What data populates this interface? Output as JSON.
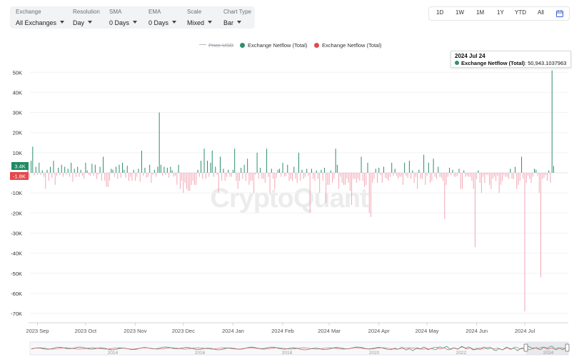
{
  "toolbar": {
    "exchange": {
      "label": "Exchange",
      "value": "All Exchanges"
    },
    "resolution": {
      "label": "Resolution",
      "value": "Day"
    },
    "sma": {
      "label": "SMA",
      "value": "0 Days"
    },
    "ema": {
      "label": "EMA",
      "value": "0 Days"
    },
    "scale": {
      "label": "Scale",
      "value": "Mixed"
    },
    "chart_type": {
      "label": "Chart Type",
      "value": "Bar"
    }
  },
  "ranges": [
    "1D",
    "1W",
    "1M",
    "1Y",
    "YTD",
    "All"
  ],
  "legend": {
    "price": "Price USD",
    "positive": "Exchange Netflow (Total)",
    "negative": "Exchange Netflow (Total)"
  },
  "tooltip": {
    "date": "2024 Jul 24",
    "series": "Exchange Netflow (Total)",
    "value": "50,943.1037963"
  },
  "watermark": "CryptoQuant",
  "colors": {
    "positive": "#2e8f6e",
    "negative": "#f2a7b5",
    "positive_label": "#1f8a63",
    "negative_label": "#e5484d",
    "price_line": "#bbbbbb"
  },
  "markers": {
    "last_positive": "3.4K",
    "last_negative": "-1.8K"
  },
  "navigator": {
    "years": [
      "2014",
      "2016",
      "2018",
      "2020",
      "2022",
      "2024"
    ]
  },
  "chart_data": {
    "type": "bar",
    "title": "",
    "series_name": "Exchange Netflow (Total)",
    "start_date": "2023-08-26",
    "ylim": [
      -72000,
      55000
    ],
    "yticks": [
      "50K",
      "40K",
      "30K",
      "20K",
      "10K",
      "0",
      "-10K",
      "-20K",
      "-30K",
      "-40K",
      "-50K",
      "-60K",
      "-70K"
    ],
    "ytick_values": [
      50000,
      40000,
      30000,
      20000,
      10000,
      0,
      -10000,
      -20000,
      -30000,
      -40000,
      -50000,
      -60000,
      -70000
    ],
    "xticks": [
      {
        "label": "2023 Sep",
        "date": "2023-09-01"
      },
      {
        "label": "2023 Oct",
        "date": "2023-10-01"
      },
      {
        "label": "2023 Nov",
        "date": "2023-11-01"
      },
      {
        "label": "2023 Dec",
        "date": "2023-12-01"
      },
      {
        "label": "2024 Jan",
        "date": "2024-01-01"
      },
      {
        "label": "2024 Feb",
        "date": "2024-02-01"
      },
      {
        "label": "2024 Mar",
        "date": "2024-03-01"
      },
      {
        "label": "2024 Apr",
        "date": "2024-04-01"
      },
      {
        "label": "2024 May",
        "date": "2024-05-01"
      },
      {
        "label": "2024 Jun",
        "date": "2024-06-01"
      },
      {
        "label": "2024 Jul",
        "date": "2024-07-01"
      }
    ],
    "values": [
      1500,
      -2500,
      6000,
      13000,
      -1200,
      3000,
      -1000,
      5000,
      -1000,
      1200,
      -2000,
      -8000,
      1500,
      -4000,
      3000,
      -2500,
      6000,
      -6000,
      -1500,
      2500,
      -1200,
      4000,
      -2000,
      3000,
      -1000,
      2000,
      -2000,
      5000,
      -4500,
      2000,
      -2000,
      3000,
      -2000,
      1500,
      -1500,
      -3000,
      5000,
      1200,
      -1000,
      -1500,
      4500,
      -1500,
      4000,
      -3000,
      -1000,
      3000,
      -4000,
      8000,
      -4000,
      -7000,
      -7000,
      -4000,
      2000,
      1500,
      -2000,
      3000,
      -3000,
      4000,
      -2500,
      5000,
      1500,
      -2500,
      3500,
      -4000,
      -2000,
      -4000,
      1500,
      -4000,
      -2000,
      2000,
      -4500,
      11000,
      -1500,
      2500,
      -2500,
      -2000,
      4000,
      -5000,
      -1000,
      1500,
      -2000,
      3000,
      30000,
      4000,
      -1500,
      3000,
      -1200,
      2500,
      -2500,
      3000,
      1200,
      -2000,
      -1500,
      -6000,
      4000,
      -8000,
      -4000,
      -10000,
      -5000,
      -8000,
      -9000,
      -9000,
      -6000,
      -4000,
      -6000,
      -6000,
      1500,
      -2000,
      6000,
      -3000,
      12000,
      -3000,
      6000,
      -2000,
      5000,
      11000,
      -2000,
      3000,
      -1000,
      -10000,
      8000,
      -4000,
      2000,
      -4000,
      -2000,
      1500,
      -2000,
      -2000,
      1500,
      12000,
      -4000,
      -8000,
      -4000,
      2500,
      -3000,
      4000,
      -4000,
      7000,
      -6000,
      -4000,
      -4000,
      -10000,
      -1000,
      10000,
      -3000,
      2500,
      -3000,
      -3000,
      -5000,
      12000,
      -2000,
      -10000,
      2000,
      -3000,
      -8000,
      -2500,
      1500,
      2000,
      -2000,
      5000,
      -2000,
      -1500,
      4000,
      -4000,
      -3000,
      -4000,
      3000,
      -3000,
      -5000,
      10000,
      -4000,
      1500,
      -3000,
      -2000,
      2000,
      -1500,
      -20000,
      2000,
      -3000,
      -4000,
      1200,
      -3000,
      -10000,
      1500,
      -4000,
      2500,
      -15000,
      -6000,
      -6000,
      1200,
      -5000,
      -3000,
      12000,
      4000,
      -8000,
      -2000,
      -5000,
      -6000,
      -6000,
      -3000,
      -5000,
      -9000,
      -16000,
      -3000,
      -3000,
      -5000,
      -3000,
      -4000,
      8000,
      -4000,
      -7000,
      -6000,
      5000,
      -20000,
      -22000,
      -5000,
      -3000,
      2000,
      -5000,
      2500,
      -1200,
      -5000,
      3000,
      -2500,
      -3000,
      -4000,
      -2000,
      5000,
      -1500,
      2000,
      -1500,
      -3000,
      -2000,
      -2000,
      -6000,
      5000,
      -1500,
      -2500,
      6000,
      -3000,
      1200,
      -5000,
      -2000,
      -8000,
      1500,
      -3000,
      -3000,
      9000,
      -6000,
      -1500,
      5000,
      -5000,
      -4000,
      7000,
      -2000,
      -3000,
      3000,
      -2000,
      -2500,
      -4000,
      -23000,
      -6000,
      -2000,
      2500,
      -1200,
      1500,
      -2000,
      -2000,
      -1500,
      2000,
      -8000,
      -8000,
      1200,
      -2000,
      -1500,
      -2000,
      -2000,
      -4000,
      -8000,
      -37000,
      -3000,
      1200,
      -5000,
      -10000,
      -2000,
      -5000,
      -1000,
      -1200,
      -6000,
      -8000,
      -3000,
      -2000,
      -4000,
      -1500,
      -10000,
      -6000,
      -4000,
      -1200,
      -2000,
      -2000,
      -3000,
      2000,
      -3000,
      -3000,
      3000,
      -8000,
      -6000,
      -4000,
      8000,
      -3000,
      -69000,
      -5000,
      -1500,
      -3000,
      -5000,
      -2000,
      2000,
      1500,
      -1500,
      -10000,
      -52000,
      -3000,
      -2500,
      -1200,
      -4000,
      1200,
      -5000,
      50943,
      3400
    ]
  }
}
